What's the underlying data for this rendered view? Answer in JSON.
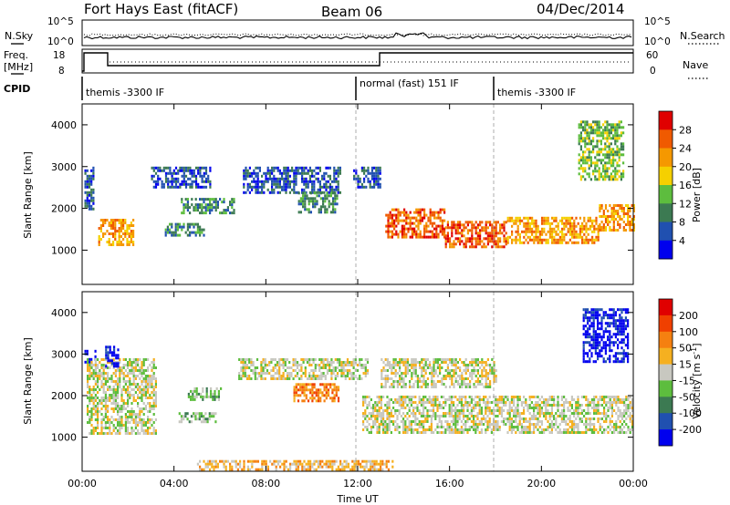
{
  "header": {
    "station": "Fort Hays East (fitACF)",
    "beam": "Beam 06",
    "date": "04/Dec/2014"
  },
  "noise_panel": {
    "left_label": "N.Sky",
    "left_ticks": [
      "10^5",
      "10^0"
    ],
    "right_label": "N.Search",
    "right_ticks": [
      "10^5",
      "10^0"
    ]
  },
  "freq_panel": {
    "left_label_line1": "Freq.",
    "left_label_line2": "[MHz]",
    "left_ticks": [
      "18",
      "8"
    ],
    "right_label": "Nave",
    "right_ticks": [
      "60",
      "0"
    ]
  },
  "cpid_panel": {
    "label": "CPID",
    "modes": [
      {
        "name": "themis -3300 IF",
        "start_hour": 0
      },
      {
        "name": "normal (fast) 151 IF",
        "start_hour": 12
      },
      {
        "name": "themis -3300 IF",
        "start_hour": 18
      }
    ]
  },
  "chart_data": [
    {
      "type": "heatmap",
      "name": "Power",
      "ylabel": "Slant Range [km]",
      "xlabel": "Time UT",
      "xlim_hours": [
        0,
        24
      ],
      "ylim_km": [
        180,
        4500
      ],
      "x_tick_labels": [
        "00:00",
        "04:00",
        "08:00",
        "12:00",
        "16:00",
        "20:00",
        "00:00"
      ],
      "y_ticks": [
        1000,
        2000,
        3000,
        4000
      ],
      "colorbar": {
        "label": "Power [dB]",
        "ticks": [
          "4",
          "8",
          "12",
          "16",
          "20",
          "24",
          "28"
        ],
        "colors": [
          "#0000ee",
          "#2050b0",
          "#3c7a52",
          "#5dbd3e",
          "#f5d000",
          "#f59800",
          "#f05a00",
          "#e00000"
        ]
      },
      "echo_regions": [
        {
          "t0": 0.1,
          "t1": 0.5,
          "r0": 2000,
          "r1": 3000,
          "level": 1
        },
        {
          "t0": 0.7,
          "t1": 2.2,
          "r0": 1150,
          "r1": 1750,
          "level": 5
        },
        {
          "t0": 3.0,
          "t1": 5.6,
          "r0": 2500,
          "r1": 3000,
          "level": 1
        },
        {
          "t0": 3.6,
          "t1": 5.4,
          "r0": 1350,
          "r1": 1650,
          "level": 2
        },
        {
          "t0": 4.3,
          "t1": 6.6,
          "r0": 1900,
          "r1": 2250,
          "level": 2
        },
        {
          "t0": 7.0,
          "t1": 11.2,
          "r0": 2400,
          "r1": 3000,
          "level": 1
        },
        {
          "t0": 9.4,
          "t1": 11.1,
          "r0": 1900,
          "r1": 2400,
          "level": 2
        },
        {
          "t0": 11.8,
          "t1": 13.0,
          "r0": 2500,
          "r1": 3000,
          "level": 1
        },
        {
          "t0": 13.2,
          "t1": 15.8,
          "r0": 1300,
          "r1": 2000,
          "level": 6
        },
        {
          "t0": 15.8,
          "t1": 18.5,
          "r0": 1100,
          "r1": 1700,
          "level": 6
        },
        {
          "t0": 18.5,
          "t1": 22.5,
          "r0": 1150,
          "r1": 1800,
          "level": 5
        },
        {
          "t0": 22.5,
          "t1": 24.0,
          "r0": 1500,
          "r1": 2100,
          "level": 5
        },
        {
          "t0": 21.6,
          "t1": 23.6,
          "r0": 2700,
          "r1": 4100,
          "level": 3
        }
      ]
    },
    {
      "type": "heatmap",
      "name": "Velocity",
      "ylabel": "Slant Range [km]",
      "xlabel": "Time UT",
      "xlim_hours": [
        0,
        24
      ],
      "ylim_km": [
        180,
        4500
      ],
      "x_tick_labels": [
        "00:00",
        "04:00",
        "08:00",
        "12:00",
        "16:00",
        "20:00",
        "00:00"
      ],
      "y_ticks": [
        1000,
        2000,
        3000,
        4000
      ],
      "colorbar": {
        "label": "Velocity [m s-1]",
        "ticks": [
          "200",
          "100",
          "50",
          "15",
          "-15",
          "-50",
          "-100",
          "-200"
        ],
        "colors": [
          "#0000ee",
          "#2050b0",
          "#3c7a52",
          "#5dbd3e",
          "#c8c8c0",
          "#f5b020",
          "#f58010",
          "#f04000",
          "#e00000"
        ]
      },
      "echo_regions": [
        {
          "t0": 0.1,
          "t1": 0.6,
          "r0": 2800,
          "r1": 3100,
          "level": 0
        },
        {
          "t0": 0.2,
          "t1": 3.2,
          "r0": 1100,
          "r1": 2900,
          "level": 4
        },
        {
          "t0": 1.0,
          "t1": 1.6,
          "r0": 2700,
          "r1": 3200,
          "level": 0
        },
        {
          "t0": 4.2,
          "t1": 5.8,
          "r0": 1400,
          "r1": 1600,
          "level": 3
        },
        {
          "t0": 4.6,
          "t1": 6.0,
          "r0": 1900,
          "r1": 2200,
          "level": 3
        },
        {
          "t0": 6.8,
          "t1": 12.4,
          "r0": 2400,
          "r1": 2900,
          "level": 4
        },
        {
          "t0": 9.2,
          "t1": 11.2,
          "r0": 1900,
          "r1": 2300,
          "level": 6
        },
        {
          "t0": 12.2,
          "t1": 24.0,
          "r0": 1100,
          "r1": 2000,
          "level": 4
        },
        {
          "t0": 13.0,
          "t1": 18.0,
          "r0": 2200,
          "r1": 2900,
          "level": 4
        },
        {
          "t0": 21.8,
          "t1": 23.8,
          "r0": 2800,
          "r1": 4100,
          "level": 0
        },
        {
          "t0": 5.0,
          "t1": 13.5,
          "r0": 200,
          "r1": 450,
          "level": 5
        }
      ]
    }
  ]
}
